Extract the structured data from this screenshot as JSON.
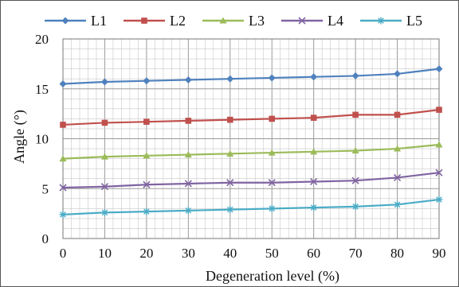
{
  "chart_data": {
    "type": "line",
    "xlabel": "Degeneration level (%)",
    "ylabel": "Angle (°)",
    "x": [
      0,
      10,
      20,
      30,
      40,
      50,
      60,
      70,
      80,
      90
    ],
    "xlim": [
      0,
      90
    ],
    "ylim": [
      0,
      20
    ],
    "xticks": [
      "0",
      "10",
      "20",
      "30",
      "40",
      "50",
      "60",
      "70",
      "80",
      "90"
    ],
    "yticks": [
      "0",
      "5",
      "10",
      "15",
      "20"
    ],
    "grid": true,
    "legend_position": "top",
    "series": [
      {
        "name": "L1",
        "color": "#4f81bd",
        "marker": "diamond",
        "values": [
          15.5,
          15.7,
          15.8,
          15.9,
          16.0,
          16.1,
          16.2,
          16.3,
          16.5,
          17.0
        ]
      },
      {
        "name": "L2",
        "color": "#c0504d",
        "marker": "square",
        "values": [
          11.4,
          11.6,
          11.7,
          11.8,
          11.9,
          12.0,
          12.1,
          12.4,
          12.4,
          12.9
        ]
      },
      {
        "name": "L3",
        "color": "#9bbb59",
        "marker": "triangle",
        "values": [
          8.0,
          8.2,
          8.3,
          8.4,
          8.5,
          8.6,
          8.7,
          8.8,
          9.0,
          9.4
        ]
      },
      {
        "name": "L4",
        "color": "#8064a2",
        "marker": "x",
        "values": [
          5.1,
          5.2,
          5.4,
          5.5,
          5.6,
          5.6,
          5.7,
          5.8,
          6.1,
          6.6
        ]
      },
      {
        "name": "L5",
        "color": "#4bacc6",
        "marker": "star",
        "values": [
          2.4,
          2.6,
          2.7,
          2.8,
          2.9,
          3.0,
          3.1,
          3.2,
          3.4,
          3.9
        ]
      }
    ]
  }
}
